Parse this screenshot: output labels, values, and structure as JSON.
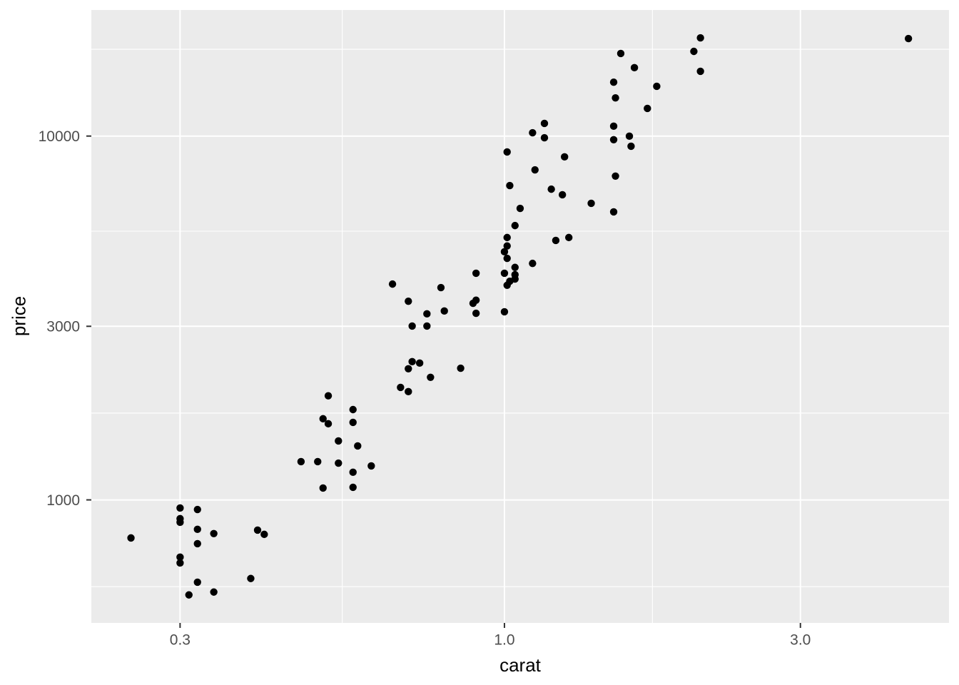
{
  "chart_data": {
    "type": "scatter",
    "title": "",
    "xlabel": "carat",
    "ylabel": "price",
    "x_scale": "log10",
    "y_scale": "log10",
    "xlim": [
      0.2158,
      5.208
    ],
    "ylim": [
      459,
      22209
    ],
    "x_major_ticks": [
      0.3,
      1.0,
      3.0
    ],
    "x_tick_labels": [
      "0.3",
      "1.0",
      "3.0"
    ],
    "x_minor_breaks": [
      0.5477,
      1.7321
    ],
    "y_major_ticks": [
      1000,
      3000,
      10000
    ],
    "y_tick_labels": [
      "1000",
      "3000",
      "10000"
    ],
    "y_minor_breaks": [
      577.4,
      1732.1,
      5477.2,
      17320.5
    ],
    "grid": "major+minor",
    "legend_position": "none",
    "point_columns": [
      "carat",
      "price"
    ],
    "points": [
      [
        0.25,
        786
      ],
      [
        0.3,
        950
      ],
      [
        0.32,
        941
      ],
      [
        0.3,
        888
      ],
      [
        0.3,
        868
      ],
      [
        0.32,
        830
      ],
      [
        0.34,
        808
      ],
      [
        0.4,
        826
      ],
      [
        0.41,
        804
      ],
      [
        0.32,
        758
      ],
      [
        0.3,
        696
      ],
      [
        0.3,
        671
      ],
      [
        0.39,
        608
      ],
      [
        0.32,
        594
      ],
      [
        0.31,
        548
      ],
      [
        0.34,
        558
      ],
      [
        0.47,
        1274
      ],
      [
        0.5,
        1274
      ],
      [
        0.51,
        1671
      ],
      [
        0.52,
        1932
      ],
      [
        0.52,
        1619
      ],
      [
        0.54,
        1452
      ],
      [
        0.54,
        1262
      ],
      [
        0.51,
        1078
      ],
      [
        0.57,
        1771
      ],
      [
        0.57,
        1633
      ],
      [
        0.58,
        1407
      ],
      [
        0.57,
        1191
      ],
      [
        0.57,
        1083
      ],
      [
        0.61,
        1240
      ],
      [
        0.68,
        2038
      ],
      [
        0.7,
        1984
      ],
      [
        0.76,
        2172
      ],
      [
        0.66,
        3919
      ],
      [
        0.7,
        3516
      ],
      [
        0.71,
        3005
      ],
      [
        0.75,
        3246
      ],
      [
        0.75,
        3005
      ],
      [
        0.71,
        2399
      ],
      [
        0.73,
        2377
      ],
      [
        0.7,
        2293
      ],
      [
        0.79,
        3833
      ],
      [
        0.8,
        3305
      ],
      [
        0.85,
        2301
      ],
      [
        0.89,
        3470
      ],
      [
        0.9,
        3540
      ],
      [
        0.9,
        4198
      ],
      [
        0.9,
        3258
      ],
      [
        1.0,
        3289
      ],
      [
        1.01,
        5262
      ],
      [
        1.01,
        4989
      ],
      [
        1.0,
        4808
      ],
      [
        1.01,
        4613
      ],
      [
        1.04,
        4355
      ],
      [
        1.0,
        4198
      ],
      [
        1.04,
        4159
      ],
      [
        1.04,
        4046
      ],
      [
        1.02,
        3990
      ],
      [
        1.01,
        3890
      ],
      [
        1.11,
        4467
      ],
      [
        1.02,
        7311
      ],
      [
        1.01,
        9043
      ],
      [
        1.04,
        5675
      ],
      [
        1.06,
        6327
      ],
      [
        1.11,
        10212
      ],
      [
        1.16,
        10834
      ],
      [
        1.16,
        9892
      ],
      [
        1.12,
        8075
      ],
      [
        1.19,
        7145
      ],
      [
        1.24,
        6897
      ],
      [
        1.25,
        8766
      ],
      [
        1.21,
        5166
      ],
      [
        1.27,
        5262
      ],
      [
        1.38,
        6535
      ],
      [
        1.51,
        7762
      ],
      [
        1.5,
        14060
      ],
      [
        1.54,
        16865
      ],
      [
        1.51,
        12735
      ],
      [
        1.5,
        10645
      ],
      [
        1.59,
        9993
      ],
      [
        1.5,
        9772
      ],
      [
        1.6,
        9376
      ],
      [
        1.7,
        11912
      ],
      [
        1.76,
        13702
      ],
      [
        1.62,
        15417
      ],
      [
        2.02,
        17092
      ],
      [
        2.07,
        18621
      ],
      [
        2.07,
        15066
      ],
      [
        1.5,
        6190
      ],
      [
        4.48,
        18537
      ]
    ]
  },
  "style": {
    "background": "#FFFFFF",
    "panel_fill": "#EBEBEB",
    "grid_color": "#FFFFFF",
    "point_color": "#000000",
    "tick_label_color": "#4D4D4D",
    "axis_title_color": "#000000",
    "tick_mark_color": "#333333"
  }
}
